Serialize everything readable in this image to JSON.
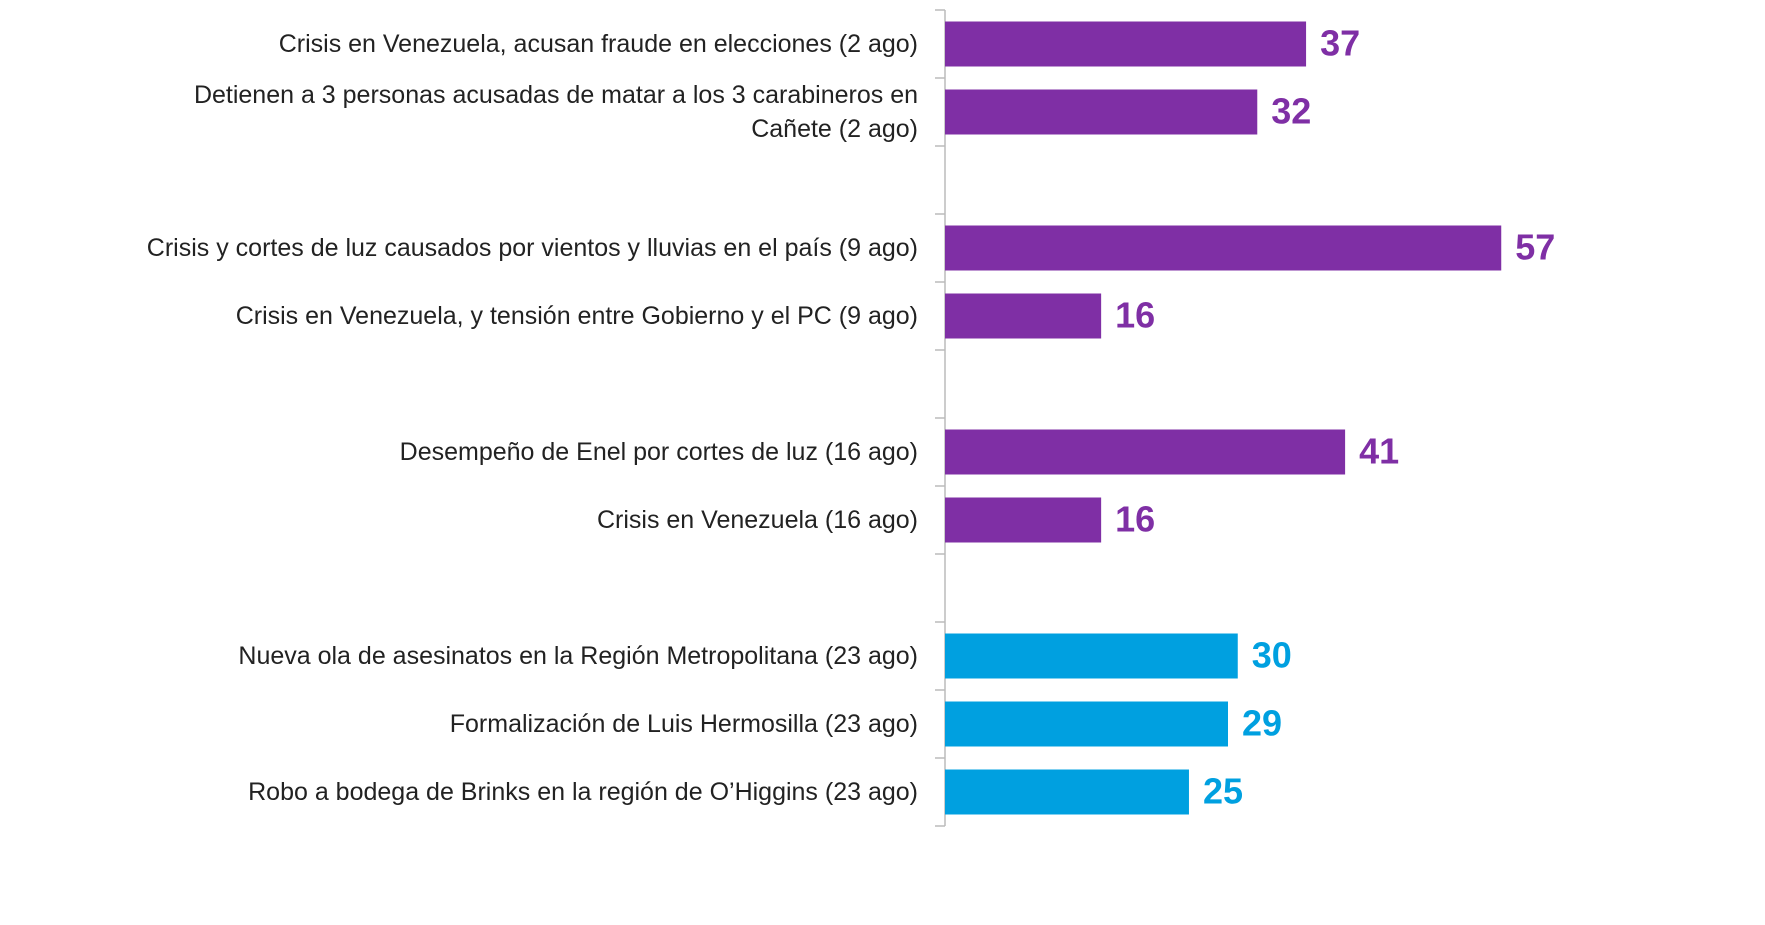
{
  "chart_data": {
    "type": "bar",
    "orientation": "horizontal",
    "categories": [
      "Crisis en Venezuela, acusan fraude en elecciones (2 ago)",
      "Detienen a 3 personas acusadas de matar a los 3 carabineros en Cañete (2 ago)",
      null,
      "Crisis y cortes de luz causados por vientos y lluvias en el país (9 ago)",
      "Crisis en Venezuela, y tensión entre Gobierno y el PC (9 ago)",
      null,
      "Desempeño de Enel por cortes de luz  (16 ago)",
      "Crisis en Venezuela (16 ago)",
      null,
      "Nueva ola de asesinatos en la Región Metropolitana (23 ago)",
      "Formalización de Luis Hermosilla (23 ago)",
      "Robo a bodega de Brinks en la región de O’Higgins (23 ago)"
    ],
    "values": [
      37,
      32,
      null,
      57,
      16,
      null,
      41,
      16,
      null,
      30,
      29,
      25
    ],
    "colors": [
      "#7f2fa5",
      "#7f2fa5",
      null,
      "#7f2fa5",
      "#7f2fa5",
      null,
      "#7f2fa5",
      "#7f2fa5",
      null,
      "#00a0e0",
      "#00a0e0",
      "#00a0e0"
    ],
    "xlim": [
      0,
      58
    ],
    "data_labels": true
  }
}
